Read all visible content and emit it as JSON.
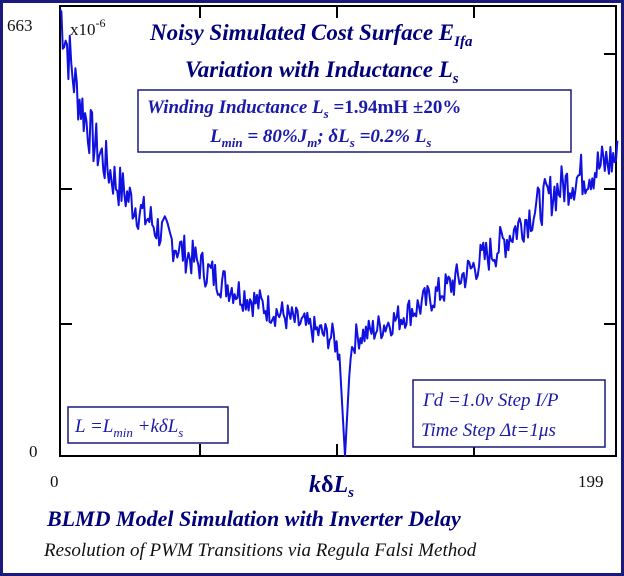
{
  "chart_data": {
    "type": "line",
    "title_line1": "Noisy Simulated Cost Surface E",
    "title_line1_sub": "Ifa",
    "title_line2": "Variation with Inductance L",
    "title_line2_sub": "s",
    "multiplier_label": "x10",
    "multiplier_exp": "-6",
    "ymax_label": "663",
    "ymin_label": "0",
    "xmin_label": "0",
    "xmax_label": "199",
    "xlim": [
      0,
      199
    ],
    "ylim": [
      0,
      663
    ],
    "xlabel": {
      "k": "k",
      "delta": "δ",
      "L": "L",
      "sub": "s"
    },
    "line_color": "#1010e0",
    "box_top": {
      "line1_a": "Winding Inductance L",
      "line1_sub": "s",
      "line1_b": " =1.94mH ±20%",
      "line2_a": "L",
      "line2_sub1": "min",
      "line2_b": " = 80%J",
      "line2_sub2": "m",
      "line2_c": "; δL",
      "line2_sub3": "s",
      "line2_d": " =0.2% L",
      "line2_sub4": "s"
    },
    "box_left": {
      "a": "L =L",
      "sub1": "min",
      "b": " +kδL",
      "sub2": "s"
    },
    "box_right": {
      "line1": "Γd =1.0v Step I/P",
      "line2": "Time Step Δt=1μs"
    },
    "footer_line1": "BLMD Model Simulation with Inverter Delay",
    "footer_line2": "Resolution of PWM Transitions via Regula Falsi Method",
    "series": [
      {
        "x": [
          0,
          2,
          4,
          6,
          8,
          10,
          12,
          14,
          16,
          18,
          20,
          22,
          24,
          26,
          28,
          30,
          32,
          34,
          36,
          38,
          40,
          42,
          44,
          46,
          48,
          50,
          52,
          54,
          56,
          58,
          60,
          62,
          64,
          66,
          68,
          70,
          72,
          74,
          76,
          78,
          80,
          82,
          84,
          86,
          88,
          90,
          92,
          94,
          96,
          98,
          100,
          102,
          104,
          106,
          108,
          110,
          112,
          114,
          116,
          118,
          120,
          122,
          124,
          126,
          128,
          130,
          132,
          134,
          136,
          138,
          140,
          142,
          144,
          146,
          148,
          150,
          152,
          154,
          156,
          158,
          160,
          162,
          164,
          166,
          168,
          170,
          172,
          174,
          176,
          178,
          180,
          182,
          184,
          186,
          188,
          190,
          192,
          194,
          196,
          198
        ],
        "y": [
          662,
          620,
          575,
          540,
          515,
          490,
          465,
          450,
          435,
          420,
          405,
          395,
          385,
          375,
          365,
          355,
          350,
          340,
          332,
          325,
          318,
          310,
          302,
          296,
          290,
          283,
          276,
          270,
          264,
          258,
          253,
          248,
          243,
          238,
          233,
          228,
          224,
          220,
          216,
          212,
          208,
          204,
          200,
          196,
          192,
          188,
          184,
          181,
          178,
          175,
          150,
          0,
          155,
          176,
          180,
          182,
          186,
          190,
          194,
          198,
          202,
          206,
          212,
          216,
          220,
          226,
          232,
          238,
          242,
          248,
          254,
          260,
          266,
          272,
          280,
          288,
          294,
          300,
          306,
          314,
          322,
          332,
          340,
          348,
          356,
          364,
          372,
          380,
          388,
          394,
          400,
          405,
          410,
          414,
          418,
          422,
          426,
          430,
          434,
          440
        ]
      }
    ]
  }
}
